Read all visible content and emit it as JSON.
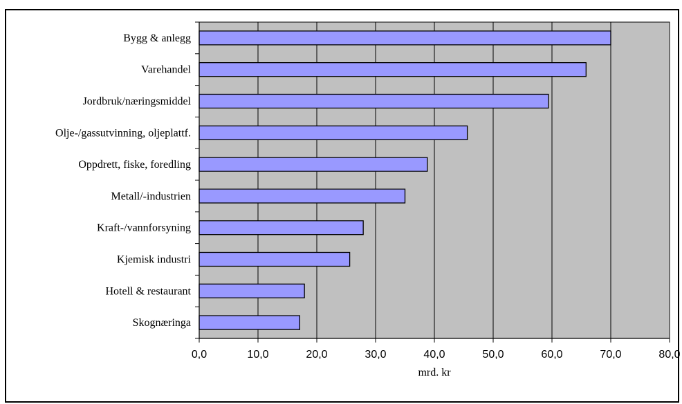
{
  "chart_data": {
    "type": "bar",
    "orientation": "horizontal",
    "categories": [
      "Bygg & anlegg",
      "Varehandel",
      "Jordbruk/næringsmiddel",
      "Olje-/gassutvinning, oljeplattf.",
      "Oppdrett, fiske, foredling",
      "Metall/-industrien",
      "Kraft-/vannforsyning",
      "Kjemisk industri",
      "Hotell  & restaurant",
      "Skognæringa"
    ],
    "values": [
      70.0,
      65.8,
      59.4,
      45.6,
      38.8,
      35.0,
      27.9,
      25.6,
      17.9,
      17.1
    ],
    "xlabel": "mrd. kr",
    "ylabel": "",
    "xlim": [
      0,
      80
    ],
    "x_ticks": [
      0,
      10,
      20,
      30,
      40,
      50,
      60,
      70,
      80
    ],
    "x_tick_labels": [
      "0,0",
      "10,0",
      "20,0",
      "30,0",
      "40,0",
      "50,0",
      "60,0",
      "70,0",
      "80,0"
    ],
    "grid": "vertical",
    "legend": "none",
    "colors": {
      "bar_fill": "#9999ff",
      "bar_stroke": "#000000",
      "plot_background": "#c0c0c0",
      "gridline": "#000000"
    }
  }
}
